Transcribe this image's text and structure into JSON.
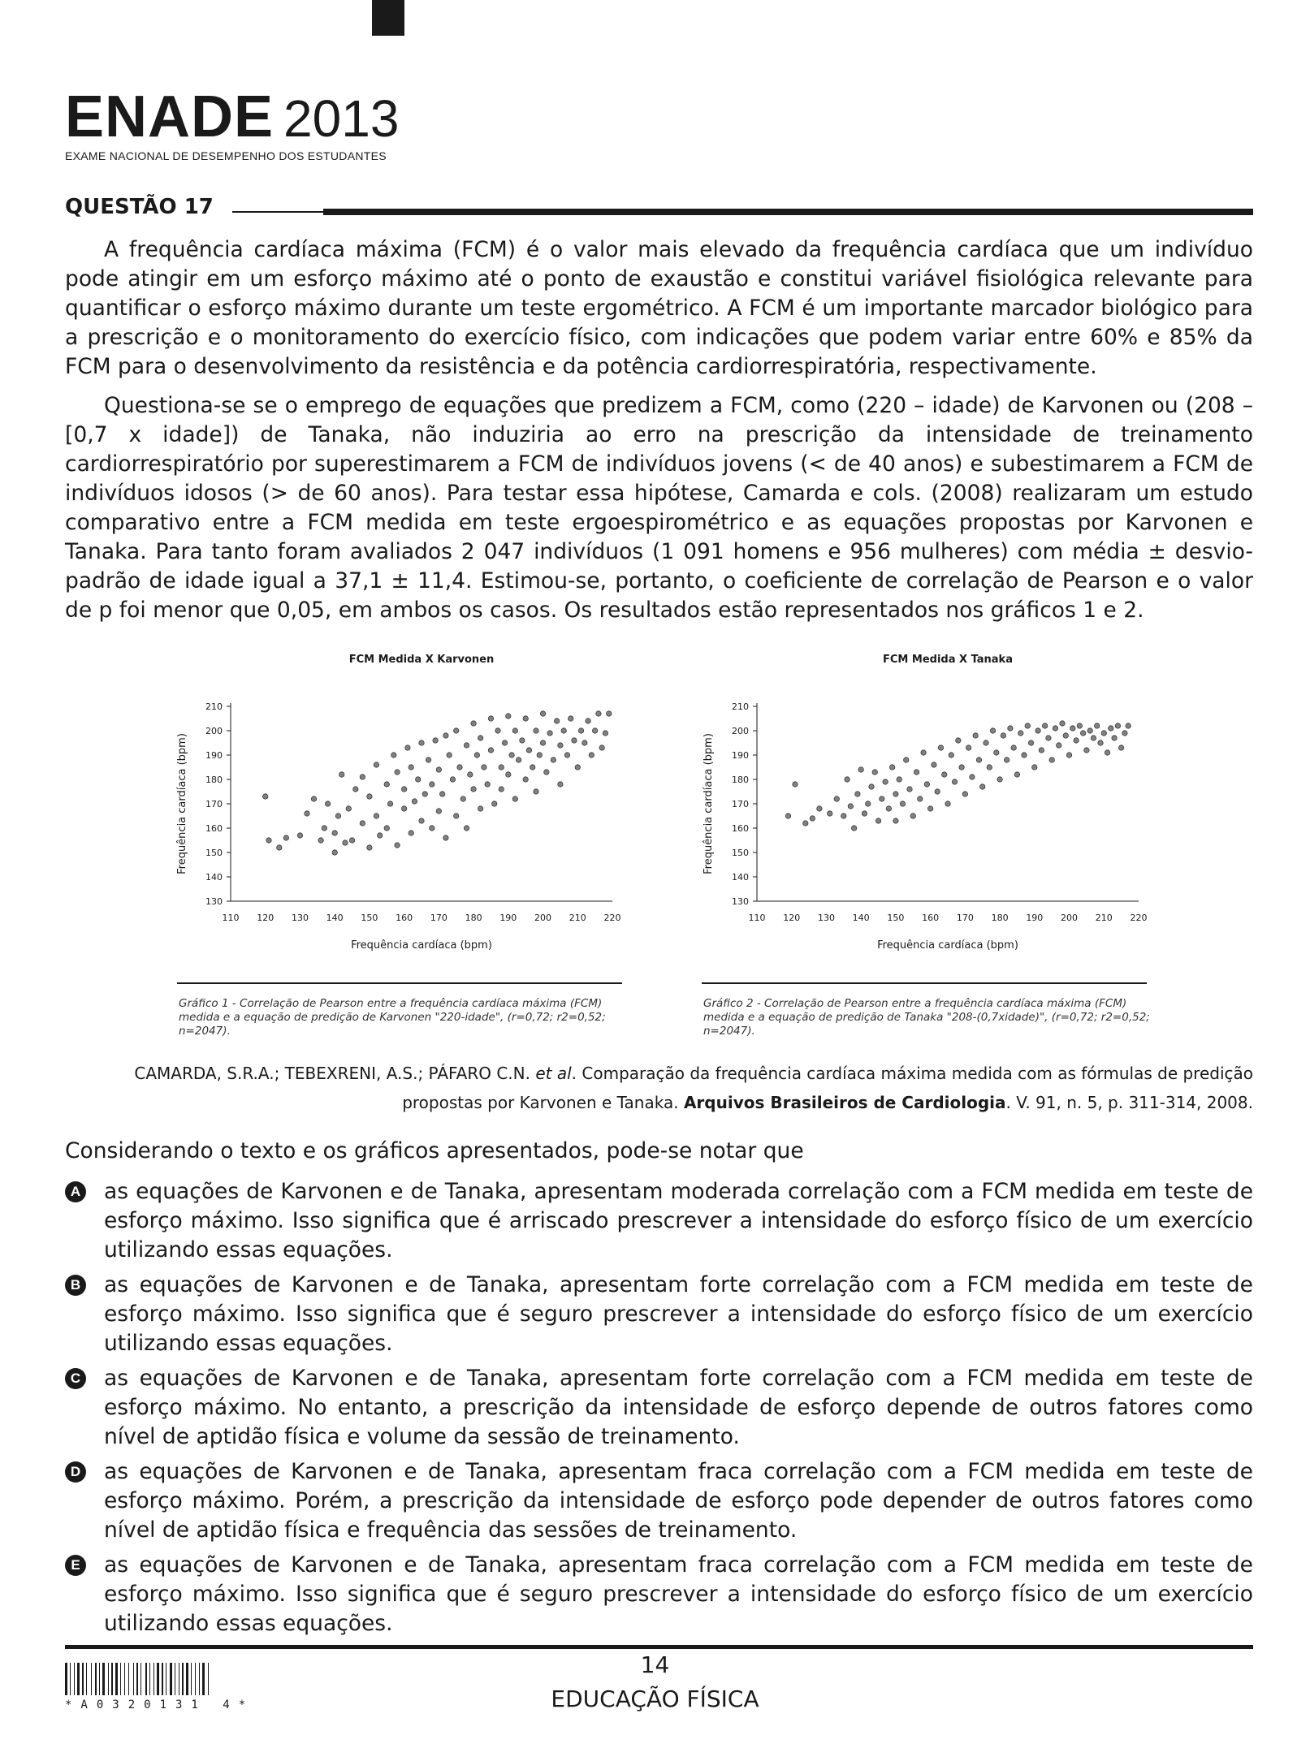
{
  "header": {
    "logo_main": "ENADE",
    "logo_year": "2013",
    "logo_sub": "EXAME NACIONAL DE DESEMPENHO DOS ESTUDANTES"
  },
  "question": {
    "title": "QUESTÃO 17",
    "para1": "A frequência cardíaca máxima (FCM) é o valor mais elevado da frequência cardíaca que um indivíduo pode atingir em um esforço máximo até o ponto de exaustão e constitui variável fisiológica relevante para quantificar o esforço máximo durante um teste ergométrico. A FCM é um importante marcador biológico para a prescrição e o monitoramento do exercício físico, com indicações que podem variar entre 60% e 85% da FCM para o desenvolvimento da resistência e da potência cardiorrespiratória, respectivamente.",
    "para2": "Questiona-se se o emprego de equações que predizem a FCM, como (220 – idade) de Karvonen ou (208 – [0,7 x idade]) de Tanaka, não induziria ao erro na prescrição da intensidade de treinamento cardiorrespiratório por superestimarem a FCM de indivíduos jovens (< de 40 anos) e subestimarem a FCM de indivíduos idosos (> de 60 anos). Para testar essa hipótese, Camarda e cols. (2008) realizaram um estudo comparativo entre a FCM medida em teste ergoespirométrico e as equações propostas por Karvonen e Tanaka. Para tanto foram avaliados 2 047 indivíduos (1 091 homens e 956 mulheres) com média ± desvio-padrão de idade igual a 37,1 ± 11,4. Estimou-se, portanto, o coeficiente de correlação de Pearson e o valor de p foi menor que 0,05, em ambos os casos. Os resultados estão representados nos gráficos 1 e 2."
  },
  "chart_data": [
    {
      "type": "scatter",
      "title": "FCM Medida X Karvonen",
      "xlabel": "Frequência cardíaca (bpm)",
      "ylabel": "Frequência cardíaca (bpm)",
      "xlim": [
        110,
        220
      ],
      "ylim": [
        130,
        210
      ],
      "xticks": [
        "110",
        "120",
        "130",
        "140",
        "150",
        "160",
        "170",
        "180",
        "190",
        "200",
        "210",
        "220"
      ],
      "yticks": [
        "130",
        "140",
        "150",
        "160",
        "170",
        "180",
        "190",
        "200",
        "210"
      ],
      "grid": false,
      "caption": "Gráfico 1 - Correlação de Pearson entre a frequência cardíaca máxima (FCM) medida e a equação de predição de Karvonen \"220-idade\", (r=0,72; r2=0,52; n=2047).",
      "points": [
        [
          120,
          173
        ],
        [
          121,
          155
        ],
        [
          124,
          152
        ],
        [
          126,
          156
        ],
        [
          130,
          157
        ],
        [
          132,
          166
        ],
        [
          134,
          172
        ],
        [
          136,
          155
        ],
        [
          137,
          160
        ],
        [
          138,
          170
        ],
        [
          140,
          150
        ],
        [
          140,
          158
        ],
        [
          141,
          165
        ],
        [
          142,
          182
        ],
        [
          143,
          154
        ],
        [
          144,
          168
        ],
        [
          145,
          155
        ],
        [
          146,
          176
        ],
        [
          148,
          181
        ],
        [
          148,
          162
        ],
        [
          150,
          173
        ],
        [
          150,
          152
        ],
        [
          152,
          186
        ],
        [
          152,
          165
        ],
        [
          153,
          157
        ],
        [
          155,
          178
        ],
        [
          155,
          160
        ],
        [
          156,
          170
        ],
        [
          157,
          190
        ],
        [
          158,
          153
        ],
        [
          158,
          183
        ],
        [
          160,
          168
        ],
        [
          160,
          176
        ],
        [
          161,
          193
        ],
        [
          162,
          158
        ],
        [
          162,
          185
        ],
        [
          163,
          171
        ],
        [
          164,
          180
        ],
        [
          165,
          195
        ],
        [
          165,
          163
        ],
        [
          166,
          174
        ],
        [
          167,
          188
        ],
        [
          168,
          160
        ],
        [
          168,
          178
        ],
        [
          169,
          196
        ],
        [
          170,
          167
        ],
        [
          170,
          184
        ],
        [
          171,
          174
        ],
        [
          172,
          198
        ],
        [
          172,
          156
        ],
        [
          173,
          190
        ],
        [
          174,
          180
        ],
        [
          175,
          165
        ],
        [
          175,
          200
        ],
        [
          176,
          185
        ],
        [
          177,
          172
        ],
        [
          178,
          194
        ],
        [
          178,
          160
        ],
        [
          179,
          182
        ],
        [
          180,
          203
        ],
        [
          180,
          176
        ],
        [
          181,
          190
        ],
        [
          182,
          168
        ],
        [
          182,
          197
        ],
        [
          183,
          185
        ],
        [
          184,
          178
        ],
        [
          185,
          205
        ],
        [
          185,
          192
        ],
        [
          186,
          170
        ],
        [
          187,
          200
        ],
        [
          188,
          185
        ],
        [
          188,
          176
        ],
        [
          189,
          195
        ],
        [
          190,
          206
        ],
        [
          190,
          182
        ],
        [
          191,
          190
        ],
        [
          192,
          172
        ],
        [
          192,
          200
        ],
        [
          193,
          188
        ],
        [
          194,
          196
        ],
        [
          195,
          180
        ],
        [
          195,
          205
        ],
        [
          196,
          192
        ],
        [
          197,
          185
        ],
        [
          198,
          200
        ],
        [
          198,
          175
        ],
        [
          199,
          190
        ],
        [
          200,
          207
        ],
        [
          200,
          195
        ],
        [
          201,
          183
        ],
        [
          202,
          199
        ],
        [
          203,
          188
        ],
        [
          204,
          204
        ],
        [
          205,
          194
        ],
        [
          205,
          178
        ],
        [
          206,
          200
        ],
        [
          207,
          190
        ],
        [
          208,
          205
        ],
        [
          209,
          196
        ],
        [
          210,
          185
        ],
        [
          211,
          200
        ],
        [
          212,
          195
        ],
        [
          213,
          204
        ],
        [
          214,
          190
        ],
        [
          215,
          200
        ],
        [
          216,
          207
        ],
        [
          217,
          193
        ],
        [
          218,
          199
        ],
        [
          219,
          207
        ]
      ]
    },
    {
      "type": "scatter",
      "title": "FCM Medida X Tanaka",
      "xlabel": "Frequência cardíaca (bpm)",
      "ylabel": "Frequência cardíaca (bpm)",
      "xlim": [
        110,
        220
      ],
      "ylim": [
        130,
        210
      ],
      "xticks": [
        "110",
        "120",
        "130",
        "140",
        "150",
        "160",
        "170",
        "180",
        "190",
        "200",
        "210",
        "220"
      ],
      "yticks": [
        "130",
        "140",
        "150",
        "160",
        "170",
        "180",
        "190",
        "200",
        "210"
      ],
      "grid": false,
      "caption": "Gráfico 2 - Correlação de Pearson entre a frequência cardíaca máxima (FCM) medida e a equação de predição de Tanaka \"208-(0,7xidade)\", (r=0,72; r2=0,52; n=2047).",
      "points": [
        [
          119,
          165
        ],
        [
          121,
          178
        ],
        [
          124,
          162
        ],
        [
          126,
          164
        ],
        [
          128,
          168
        ],
        [
          131,
          166
        ],
        [
          133,
          172
        ],
        [
          135,
          165
        ],
        [
          136,
          180
        ],
        [
          137,
          169
        ],
        [
          138,
          160
        ],
        [
          139,
          174
        ],
        [
          140,
          184
        ],
        [
          141,
          166
        ],
        [
          142,
          170
        ],
        [
          143,
          177
        ],
        [
          144,
          183
        ],
        [
          145,
          163
        ],
        [
          146,
          172
        ],
        [
          147,
          179
        ],
        [
          148,
          168
        ],
        [
          149,
          185
        ],
        [
          150,
          174
        ],
        [
          150,
          163
        ],
        [
          151,
          180
        ],
        [
          152,
          170
        ],
        [
          153,
          188
        ],
        [
          154,
          176
        ],
        [
          155,
          165
        ],
        [
          156,
          183
        ],
        [
          157,
          172
        ],
        [
          158,
          191
        ],
        [
          159,
          178
        ],
        [
          160,
          168
        ],
        [
          161,
          186
        ],
        [
          162,
          175
        ],
        [
          163,
          193
        ],
        [
          164,
          182
        ],
        [
          165,
          170
        ],
        [
          166,
          190
        ],
        [
          167,
          179
        ],
        [
          168,
          196
        ],
        [
          169,
          185
        ],
        [
          170,
          174
        ],
        [
          171,
          193
        ],
        [
          172,
          181
        ],
        [
          173,
          198
        ],
        [
          174,
          188
        ],
        [
          175,
          177
        ],
        [
          176,
          195
        ],
        [
          177,
          185
        ],
        [
          178,
          200
        ],
        [
          179,
          191
        ],
        [
          180,
          180
        ],
        [
          181,
          198
        ],
        [
          182,
          188
        ],
        [
          183,
          201
        ],
        [
          184,
          193
        ],
        [
          185,
          182
        ],
        [
          186,
          199
        ],
        [
          187,
          190
        ],
        [
          188,
          202
        ],
        [
          189,
          195
        ],
        [
          190,
          185
        ],
        [
          191,
          200
        ],
        [
          192,
          192
        ],
        [
          193,
          202
        ],
        [
          194,
          197
        ],
        [
          195,
          188
        ],
        [
          196,
          201
        ],
        [
          197,
          194
        ],
        [
          198,
          203
        ],
        [
          199,
          198
        ],
        [
          200,
          190
        ],
        [
          201,
          201
        ],
        [
          202,
          196
        ],
        [
          203,
          202
        ],
        [
          204,
          199
        ],
        [
          205,
          192
        ],
        [
          206,
          200
        ],
        [
          207,
          197
        ],
        [
          208,
          202
        ],
        [
          209,
          195
        ],
        [
          210,
          199
        ],
        [
          211,
          191
        ],
        [
          212,
          201
        ],
        [
          213,
          197
        ],
        [
          214,
          202
        ],
        [
          215,
          193
        ],
        [
          216,
          199
        ],
        [
          217,
          202
        ]
      ]
    }
  ],
  "reference": {
    "line1_pre": "CAMARDA, S.R.A.; TEBEXRENI, A.S.; PÁFARO C.N. ",
    "line1_italic": "et al",
    "line1_post": ". Comparação da frequência cardíaca máxima medida com as fórmulas de predição",
    "line2_pre": "propostas por Karvonen e Tanaka. ",
    "line2_bold": "Arquivos Brasileiros de Cardiologia",
    "line2_post": ". V. 91, n. 5, p. 311-314, 2008."
  },
  "prompt": "Considerando o texto e os gráficos apresentados, pode-se notar que",
  "options": [
    {
      "letter": "A",
      "text": "as equações de Karvonen e de Tanaka, apresentam moderada correlação com a FCM medida em teste de esforço máximo. Isso significa que é arriscado prescrever a intensidade do esforço físico de um exercício utilizando essas equações."
    },
    {
      "letter": "B",
      "text": "as equações de Karvonen e de Tanaka, apresentam forte correlação com a FCM medida em teste de esforço máximo. Isso significa que é seguro prescrever a intensidade do esforço físico de um exercício utilizando essas equações."
    },
    {
      "letter": "C",
      "text": "as equações de Karvonen e de Tanaka, apresentam forte correlação com a FCM medida em teste de esforço máximo. No entanto, a prescrição da intensidade de esforço depende de outros fatores como nível de aptidão física e volume da sessão de treinamento."
    },
    {
      "letter": "D",
      "text": "as equações de Karvonen e de Tanaka, apresentam fraca correlação com a FCM medida em teste de esforço máximo. Porém, a prescrição da intensidade de esforço pode depender de outros fatores como nível de aptidão física e frequência das sessões de treinamento."
    },
    {
      "letter": "E",
      "text": "as equações de Karvonen e de Tanaka, apresentam fraca correlação com a FCM medida em teste de esforço máximo. Isso significa que é seguro prescrever a intensidade do esforço físico de um exercício utilizando essas equações."
    }
  ],
  "footer": {
    "page_number": "14",
    "course": "EDUCAÇÃO FÍSICA",
    "barcode_text": "*A0320131 4*"
  },
  "colors": {
    "ink": "#1a1a1a",
    "marker": "#6b6b6b"
  }
}
